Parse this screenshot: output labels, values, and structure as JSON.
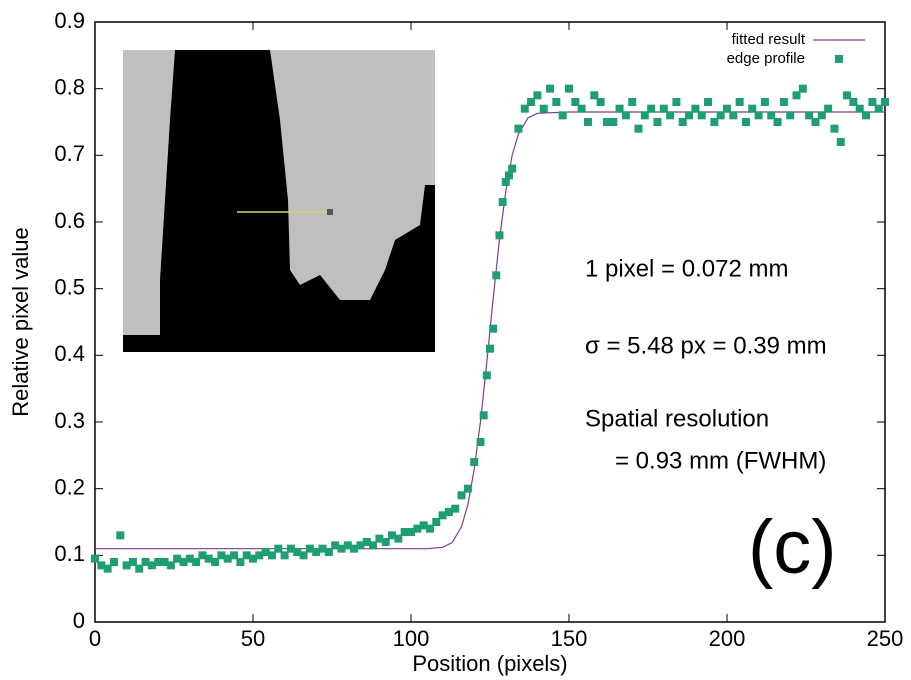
{
  "chart_data": {
    "type": "scatter",
    "x_label": "Position (pixels)",
    "y_label": "Relative pixel value",
    "xlim": [
      0,
      250
    ],
    "xticks": [
      0,
      50,
      100,
      150,
      200,
      250
    ],
    "ylim": [
      0,
      0.9
    ],
    "yticks": [
      0,
      0.1,
      0.2,
      0.3,
      0.4,
      0.5,
      0.6,
      0.7,
      0.8,
      0.9
    ],
    "legend": "top-right",
    "annotations": [
      "1 pixel = 0.072 mm",
      "σ = 5.48 px = 0.39 mm",
      "Spatial resolution",
      "= 0.93 mm (FWHM)",
      "(c)"
    ],
    "series": [
      {
        "name": "fitted result",
        "type": "line",
        "color": "#7a3b9e",
        "x": [
          0,
          100,
          105,
          110,
          113,
          116,
          118,
          120,
          122,
          124,
          125,
          126,
          128,
          130,
          132,
          134,
          137,
          140,
          150,
          250
        ],
        "values": [
          0.11,
          0.11,
          0.11,
          0.112,
          0.119,
          0.143,
          0.176,
          0.229,
          0.301,
          0.39,
          0.438,
          0.485,
          0.574,
          0.646,
          0.7,
          0.732,
          0.756,
          0.763,
          0.765,
          0.765
        ]
      },
      {
        "name": "edge profile",
        "type": "scatter",
        "color": "#1f9e74",
        "x": [
          0,
          2,
          4,
          6,
          8,
          10,
          12,
          14,
          16,
          18,
          20,
          22,
          24,
          26,
          28,
          30,
          32,
          34,
          36,
          38,
          40,
          42,
          44,
          46,
          48,
          50,
          52,
          54,
          56,
          58,
          60,
          62,
          64,
          66,
          68,
          70,
          72,
          74,
          76,
          78,
          80,
          82,
          84,
          86,
          88,
          90,
          92,
          94,
          96,
          98,
          100,
          102,
          104,
          106,
          108,
          110,
          112,
          114,
          116,
          118,
          120,
          122,
          123,
          124,
          125,
          126,
          127,
          128,
          129,
          130,
          131,
          132,
          134,
          136,
          138,
          140,
          142,
          144,
          146,
          148,
          150,
          152,
          154,
          156,
          158,
          160,
          162,
          164,
          166,
          168,
          170,
          172,
          174,
          176,
          178,
          180,
          182,
          184,
          186,
          188,
          190,
          192,
          194,
          196,
          198,
          200,
          202,
          204,
          206,
          208,
          210,
          212,
          214,
          216,
          218,
          220,
          222,
          224,
          226,
          228,
          230,
          232,
          234,
          236,
          238,
          240,
          242,
          244,
          246,
          248,
          250
        ],
        "values": [
          0.095,
          0.085,
          0.08,
          0.09,
          0.13,
          0.085,
          0.09,
          0.08,
          0.09,
          0.085,
          0.09,
          0.09,
          0.085,
          0.095,
          0.09,
          0.095,
          0.09,
          0.1,
          0.095,
          0.09,
          0.1,
          0.095,
          0.1,
          0.09,
          0.1,
          0.095,
          0.1,
          0.105,
          0.1,
          0.11,
          0.1,
          0.11,
          0.105,
          0.1,
          0.11,
          0.105,
          0.11,
          0.105,
          0.115,
          0.11,
          0.115,
          0.11,
          0.115,
          0.12,
          0.115,
          0.125,
          0.12,
          0.13,
          0.125,
          0.135,
          0.135,
          0.14,
          0.145,
          0.14,
          0.15,
          0.16,
          0.165,
          0.17,
          0.19,
          0.2,
          0.24,
          0.27,
          0.31,
          0.37,
          0.41,
          0.44,
          0.52,
          0.58,
          0.63,
          0.66,
          0.67,
          0.68,
          0.74,
          0.77,
          0.78,
          0.79,
          0.77,
          0.8,
          0.78,
          0.76,
          0.8,
          0.78,
          0.77,
          0.75,
          0.79,
          0.78,
          0.75,
          0.75,
          0.77,
          0.76,
          0.78,
          0.74,
          0.76,
          0.77,
          0.75,
          0.77,
          0.76,
          0.78,
          0.75,
          0.76,
          0.77,
          0.76,
          0.78,
          0.75,
          0.76,
          0.77,
          0.76,
          0.78,
          0.75,
          0.77,
          0.76,
          0.78,
          0.76,
          0.75,
          0.78,
          0.76,
          0.79,
          0.8,
          0.76,
          0.75,
          0.76,
          0.77,
          0.74,
          0.72,
          0.79,
          0.78,
          0.77,
          0.76,
          0.78,
          0.77,
          0.78
        ]
      }
    ]
  }
}
